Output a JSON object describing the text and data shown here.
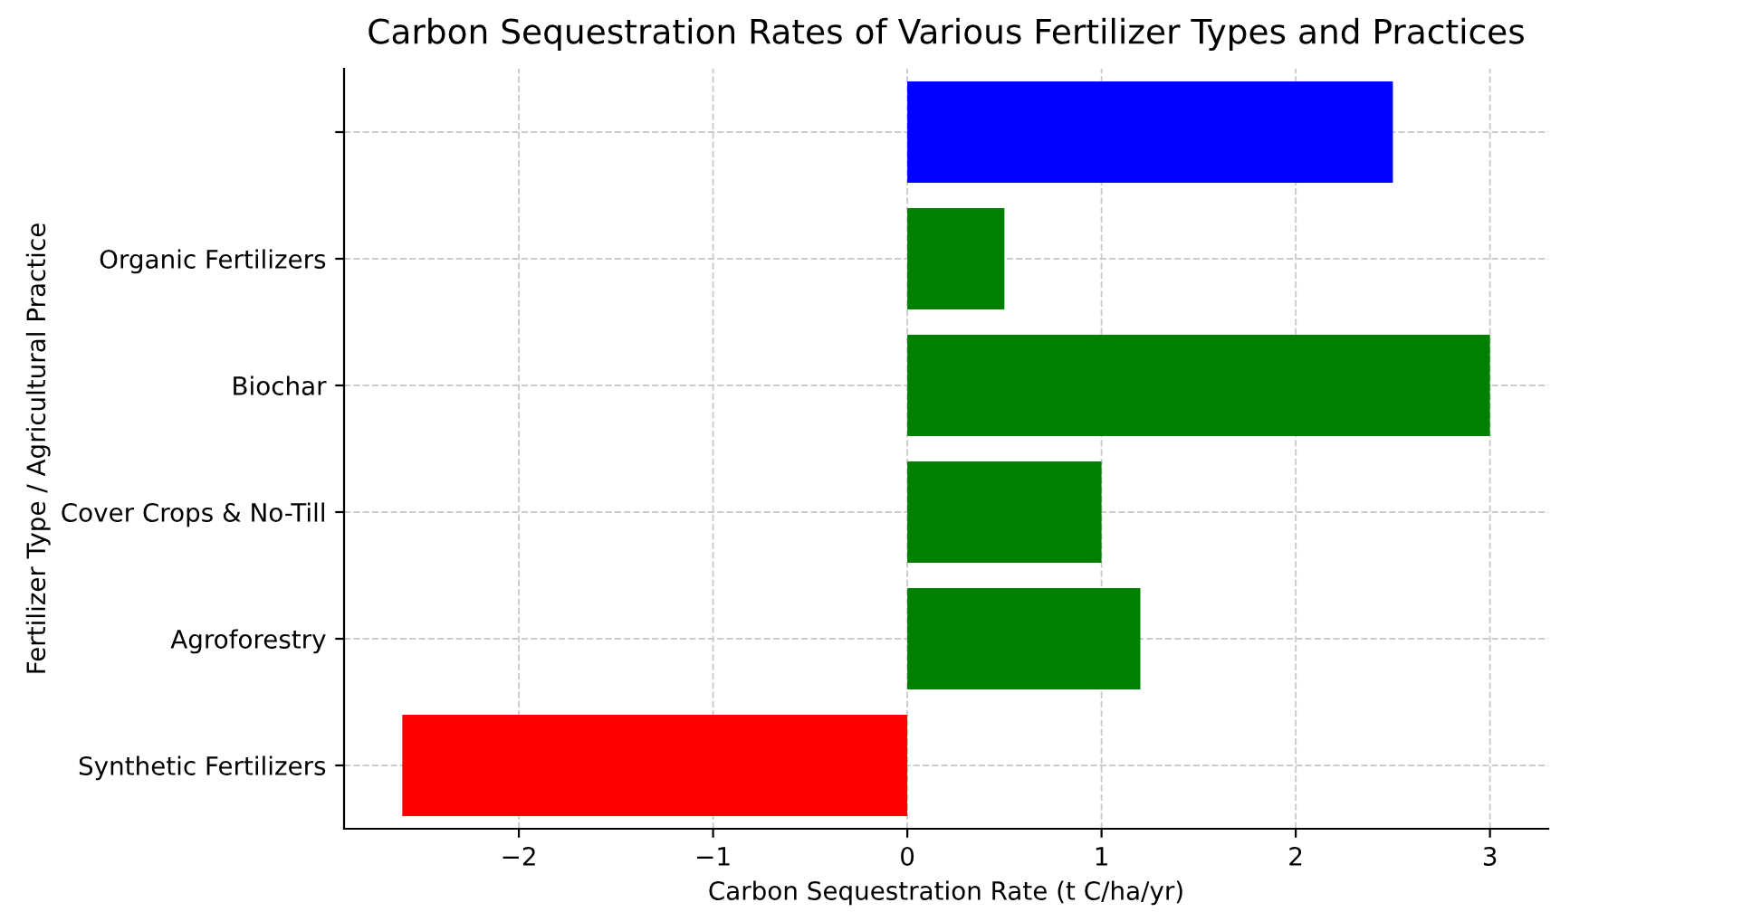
{
  "chart_data": {
    "type": "bar",
    "orientation": "horizontal",
    "title": "Carbon Sequestration Rates of Various Fertilizer Types and Practices",
    "xlabel": "Carbon Sequestration Rate (t C/ha/yr)",
    "ylabel": "Fertilizer Type / Agricultural Practice",
    "categories": [
      null,
      "Organic Fertilizers",
      "Biochar",
      "Cover Crops & No-Till",
      "Agroforestry",
      "Synthetic Fertilizers"
    ],
    "values": [
      2.5,
      0.5,
      3.0,
      1.0,
      1.2,
      -2.6
    ],
    "colors": [
      "#0000ff",
      "#008000",
      "#008000",
      "#008000",
      "#008000",
      "#ff0000"
    ],
    "xlim": [
      -2.9,
      3.3
    ],
    "xticks": [
      {
        "value": -2,
        "label": "−2"
      },
      {
        "value": -1,
        "label": "−1"
      },
      0,
      1,
      2,
      3
    ],
    "grid": true
  }
}
